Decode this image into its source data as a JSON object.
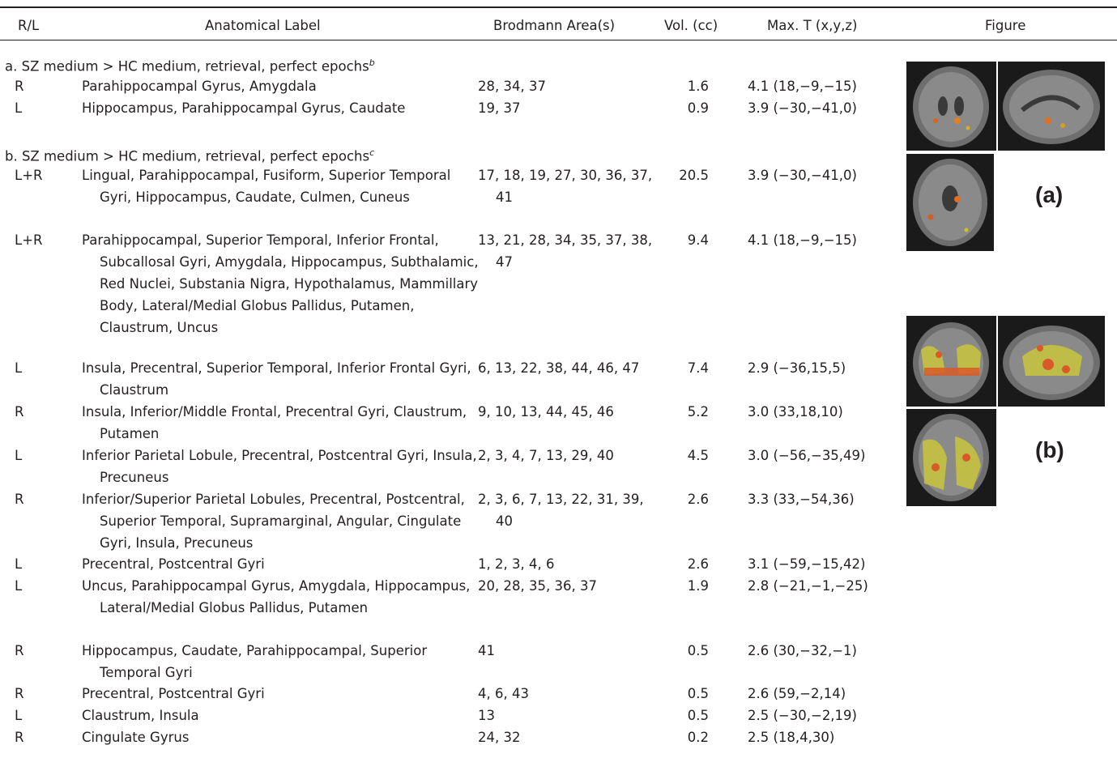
{
  "headers": {
    "rl": "R/L",
    "label": "Anatomical Label",
    "ba": "Brodmann Area(s)",
    "vol": "Vol. (cc)",
    "maxt": "Max. T (x,y,z)",
    "figure": "Figure"
  },
  "section_a": {
    "title": "a. SZ medium > HC medium, retrieval, perfect epochs",
    "note": "b"
  },
  "section_b": {
    "title": "b. SZ medium > HC medium, retrieval, perfect epochs",
    "note": "c"
  },
  "rows_a": [
    {
      "rl": "R",
      "label": "Parahippocampal Gyrus, Amygdala",
      "ba": "28, 34, 37",
      "vol": "1.6",
      "maxt": "4.1 (18,−9,−15)"
    },
    {
      "rl": "L",
      "label": "Hippocampus, Parahippocampal Gyrus, Caudate",
      "ba": "19, 37",
      "vol": "0.9",
      "maxt": "3.9 (−30,−41,0)"
    }
  ],
  "rows_b": [
    {
      "rl": "L+R",
      "label": "Lingual, Parahippocampal, Fusiform, Superior Temporal Gyri, Hippocampus, Caudate, Culmen, Cuneus",
      "ba": "17, 18, 19, 27, 30, 36, 37, 41",
      "vol": "20.5",
      "maxt": "3.9 (−30,−41,0)"
    },
    {
      "rl": "L+R",
      "label": "Parahippocampal, Superior Temporal, Inferior Frontal, Subcallosal Gyri, Amygdala, Hippocampus, Subthalamic, Red Nuclei, Substania Nigra, Hypothalamus, Mammillary Body, Lateral/Medial Globus Pallidus, Putamen, Claustrum, Uncus",
      "ba": "13, 21, 28, 34, 35, 37, 38, 47",
      "vol": "9.4",
      "maxt": "4.1 (18,−9,−15)"
    },
    {
      "rl": "L",
      "label": "Insula, Precentral, Superior Temporal, Inferior Frontal Gyri, Claustrum",
      "ba": "6, 13, 22, 38, 44, 46, 47",
      "vol": "7.4",
      "maxt": "2.9 (−36,15,5)"
    },
    {
      "rl": "R",
      "label": "Insula, Inferior/Middle Frontal, Precentral Gyri, Claustrum, Putamen",
      "ba": "9, 10, 13, 44, 45, 46",
      "vol": "5.2",
      "maxt": "3.0 (33,18,10)"
    },
    {
      "rl": "L",
      "label": "Inferior Parietal Lobule, Precentral, Postcentral Gyri, Insula, Precuneus",
      "ba": "2, 3, 4, 7, 13, 29, 40",
      "vol": "4.5",
      "maxt": "3.0 (−56,−35,49)"
    },
    {
      "rl": "R",
      "label": "Inferior/Superior Parietal Lobules, Precentral, Postcentral, Superior Temporal, Supramarginal, Angular, Cingulate Gyri, Insula, Precuneus",
      "ba": "2, 3, 6, 7, 13, 22, 31, 39, 40",
      "vol": "2.6",
      "maxt": "3.3 (33,−54,36)"
    },
    {
      "rl": "L",
      "label": "Precentral, Postcentral Gyri",
      "ba": "1, 2, 3, 4, 6",
      "vol": "2.6",
      "maxt": "3.1 (−59,−15,42)"
    },
    {
      "rl": "L",
      "label": "Uncus, Parahippocampal Gyrus, Amygdala, Hippocampus, Lateral/Medial Globus Pallidus, Putamen",
      "ba": "20, 28, 35, 36, 37",
      "vol": "1.9",
      "maxt": "2.8 (−21,−1,−25)"
    },
    {
      "rl": "R",
      "label": "Hippocampus, Caudate, Parahippocampal, Superior Temporal Gyri",
      "ba": "41",
      "vol": "0.5",
      "maxt": "2.6 (30,−32,−1)"
    },
    {
      "rl": "R",
      "label": "Precentral, Postcentral Gyri",
      "ba": "4, 6, 43",
      "vol": "0.5",
      "maxt": "2.6 (59,−2,14)"
    },
    {
      "rl": "L",
      "label": "Claustrum, Insula",
      "ba": "13",
      "vol": "0.5",
      "maxt": "2.5 (−30,−2,19)"
    },
    {
      "rl": "R",
      "label": "Cingulate Gyrus",
      "ba": "24, 32",
      "vol": "0.2",
      "maxt": "2.5 (18,4,30)"
    }
  ],
  "figure_labels": {
    "a": "(a)",
    "b": "(b)"
  }
}
